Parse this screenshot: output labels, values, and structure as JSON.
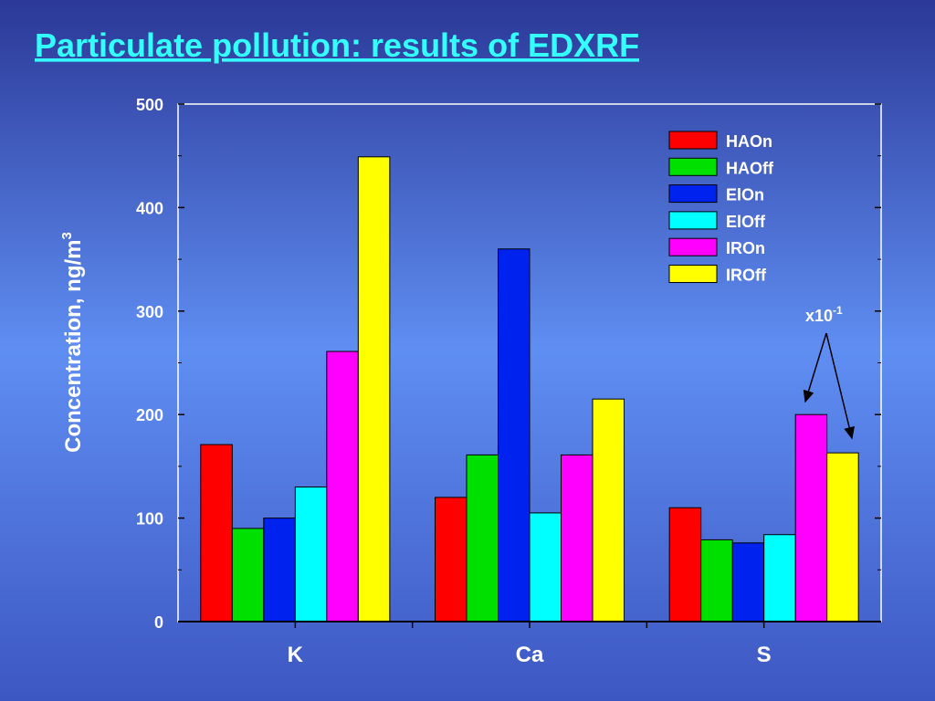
{
  "chart_data": {
    "type": "bar",
    "title": "Particulate pollution: results of EDXRF",
    "ylabel": {
      "text": "Concentration, ng/m",
      "sup": "3"
    },
    "annotation": {
      "text": "x10",
      "sup": "-1"
    },
    "categories": [
      "K",
      "Ca",
      "S"
    ],
    "series": [
      {
        "name": "HAOn",
        "color": "#ff0000",
        "values": [
          171,
          120,
          110
        ]
      },
      {
        "name": "HAOff",
        "color": "#00e000",
        "values": [
          90,
          161,
          79
        ]
      },
      {
        "name": "ElOn",
        "color": "#0022ee",
        "values": [
          100,
          360,
          76
        ]
      },
      {
        "name": "ElOff",
        "color": "#00ffff",
        "values": [
          130,
          105,
          84
        ]
      },
      {
        "name": "IROn",
        "color": "#ff00ff",
        "values": [
          261,
          161,
          200
        ]
      },
      {
        "name": "IROff",
        "color": "#ffff00",
        "values": [
          449,
          215,
          163
        ]
      }
    ],
    "ylim": [
      0,
      500
    ],
    "yticks": [
      0,
      100,
      200,
      300,
      400,
      500
    ],
    "minor_yticks": [
      50,
      150,
      250,
      350,
      450
    ]
  }
}
